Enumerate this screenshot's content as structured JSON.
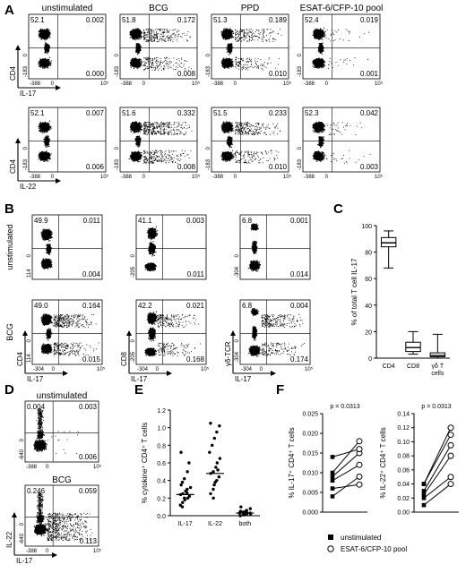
{
  "panelA": {
    "letter": "A",
    "columns": [
      "unstimulated",
      "BCG",
      "PPD",
      "ESAT-6/CFP-10 pool"
    ],
    "row1": {
      "y_label": "CD4",
      "x_label": "IL-17",
      "quadrants": [
        {
          "ul": "52.1",
          "ur": "0.002",
          "lr": "0.000"
        },
        {
          "ul": "51.8",
          "ur": "0.172",
          "lr": "0.008"
        },
        {
          "ul": "51.3",
          "ur": "0.189",
          "lr": "0.010"
        },
        {
          "ul": "52.4",
          "ur": "0.019",
          "lr": "0.001"
        }
      ]
    },
    "row2": {
      "y_label": "CD4",
      "x_label": "IL-22",
      "quadrants": [
        {
          "ul": "52.1",
          "ur": "0.007",
          "lr": "0.006"
        },
        {
          "ul": "51.6",
          "ur": "0.332",
          "lr": "0.008"
        },
        {
          "ul": "51.5",
          "ur": "0.233",
          "lr": "0.010"
        },
        {
          "ul": "52.3",
          "ur": "0.042",
          "lr": "0.003"
        }
      ]
    },
    "ticks": {
      "x_neg": "-388",
      "x_zero": "0",
      "x_max": "10⁵",
      "y_neg": "-183",
      "y_zero": "0"
    }
  },
  "panelB": {
    "letter": "B",
    "row_labels": [
      "unstimulated",
      "BCG"
    ],
    "x_label": "IL-17",
    "y_labels": [
      "CD4",
      "CD8",
      "γδ-TCR"
    ],
    "unstimulated": [
      {
        "ul": "49.9",
        "ur": "0.011",
        "lr": "0.004"
      },
      {
        "ul": "41.1",
        "ur": "0.003",
        "lr": "0.011"
      },
      {
        "ul": "6.8",
        "ur": "0.001",
        "lr": "0.014"
      }
    ],
    "bcg": [
      {
        "ul": "49.0",
        "ur": "0.164",
        "lr": "0.015"
      },
      {
        "ul": "42.2",
        "ur": "0.021",
        "lr": "0.168"
      },
      {
        "ul": "6.8",
        "ur": "0.004",
        "lr": "0.174"
      }
    ],
    "ticks": {
      "x_neg": "-304",
      "x_zero": "0",
      "x_max": "10⁵",
      "y_neg_a": "114",
      "y_neg_b": "-205",
      "y_neg_c": "-304",
      "y_zero": "0"
    }
  },
  "panelC": {
    "letter": "C",
    "chart_data": {
      "type": "box",
      "categories": [
        "CD4",
        "CD8",
        "γδ T cells"
      ],
      "ylabel": "% of total T cell IL-17",
      "ylim": [
        0,
        100
      ],
      "yticks": [
        "0",
        "20",
        "40",
        "60",
        "80",
        "100"
      ],
      "boxes": [
        {
          "min": 68,
          "q1": 84,
          "median": 87,
          "q3": 91,
          "max": 96
        },
        {
          "min": 3,
          "q1": 5,
          "median": 8,
          "q3": 12,
          "max": 20
        },
        {
          "min": 0,
          "q1": 1,
          "median": 2,
          "q3": 4,
          "max": 18
        }
      ]
    }
  },
  "panelD": {
    "letter": "D",
    "titles": [
      "unstimulated",
      "BCG"
    ],
    "x_label": "IL-17",
    "y_label": "IL-22",
    "unstimulated": {
      "ul": "0.004",
      "ur": "0.003",
      "lr": "0.006"
    },
    "bcg": {
      "ul": "0.246",
      "ur": "0.059",
      "lr": "0.113"
    },
    "ticks": {
      "x_neg": "-388",
      "x_zero": "0",
      "x_max": "10⁵",
      "y_neg_a": "-640",
      "y_neg_b": "-640",
      "y_zero": "0"
    }
  },
  "panelE": {
    "letter": "E",
    "chart_data": {
      "type": "scatter",
      "categories": [
        "IL-17",
        "IL-22",
        "both"
      ],
      "ylabel": "% cytokine⁺ CD4⁺ T cells",
      "ylim": [
        0,
        1.2
      ],
      "yticks": [
        "0.0",
        "0.2",
        "0.4",
        "0.6",
        "0.8",
        "1.0",
        "1.2"
      ],
      "medians": [
        0.24,
        0.48,
        0.03
      ],
      "points": [
        [
          0.12,
          0.15,
          0.18,
          0.2,
          0.22,
          0.24,
          0.25,
          0.28,
          0.3,
          0.32,
          0.35,
          0.38,
          0.42,
          0.5,
          0.6,
          0.72,
          0.1,
          0.2,
          0.26
        ],
        [
          0.25,
          0.3,
          0.35,
          0.4,
          0.44,
          0.48,
          0.5,
          0.55,
          0.6,
          0.65,
          0.72,
          0.8,
          0.88,
          0.95,
          1.02,
          1.05,
          0.2,
          0.38,
          0.52
        ],
        [
          0.0,
          0.01,
          0.02,
          0.02,
          0.03,
          0.03,
          0.04,
          0.05,
          0.06,
          0.08,
          0.1,
          0.04,
          0.01,
          0.03,
          0.02,
          0.05
        ]
      ]
    }
  },
  "panelF": {
    "letter": "F",
    "legend": [
      "unstimulated",
      "ESAT-6/CFP-10 pool"
    ],
    "left": {
      "p": "p = 0.0313",
      "ylabel": "% IL-17⁺ CD4⁺ T cells",
      "ylim": [
        0,
        0.025
      ],
      "yticks": [
        "0.000",
        "0.005",
        "0.010",
        "0.015",
        "0.020",
        "0.025"
      ],
      "pairs": [
        [
          0.004,
          0.009
        ],
        [
          0.006,
          0.007
        ],
        [
          0.008,
          0.012
        ],
        [
          0.009,
          0.015
        ],
        [
          0.01,
          0.018
        ],
        [
          0.014,
          0.016
        ]
      ]
    },
    "right": {
      "p": "p = 0.0313",
      "ylabel": "% IL-22⁺ CD4⁺ T cells",
      "ylim": [
        0,
        0.14
      ],
      "yticks": [
        "0.00",
        "0.02",
        "0.04",
        "0.06",
        "0.08",
        "0.10",
        "0.12",
        "0.14"
      ],
      "pairs": [
        [
          0.01,
          0.04
        ],
        [
          0.02,
          0.05
        ],
        [
          0.025,
          0.08
        ],
        [
          0.03,
          0.095
        ],
        [
          0.04,
          0.11
        ],
        [
          0.04,
          0.12
        ]
      ]
    }
  }
}
